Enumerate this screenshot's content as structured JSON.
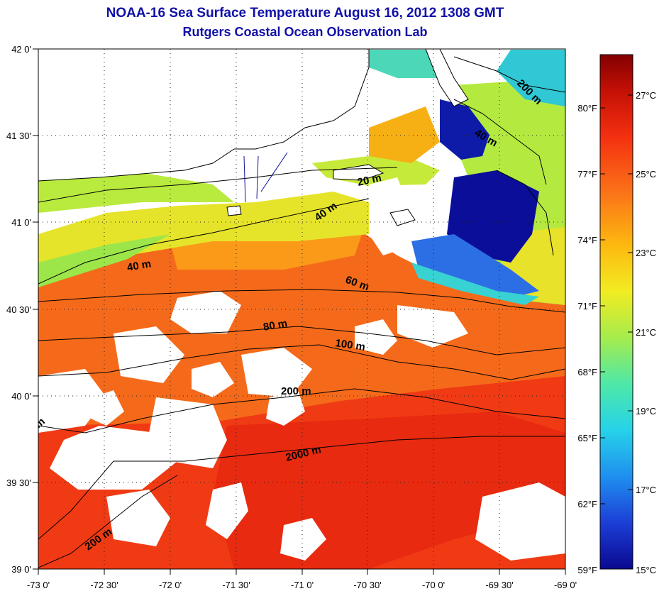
{
  "header": {
    "title": "NOAA-16 Sea Surface Temperature August 16, 2012 1308 GMT",
    "subtitle": "Rutgers Coastal Ocean Observation Lab"
  },
  "map": {
    "lat_ticks": [
      "42 0'",
      "41 30'",
      "41 0'",
      "40 30'",
      "40 0'",
      "39 30'",
      "39 0'"
    ],
    "lon_ticks": [
      "-73 0'",
      "-72 30'",
      "-72 0'",
      "-71 30'",
      "-71 0'",
      "-70 30'",
      "-70 0'",
      "-69 30'",
      "-69 0'"
    ],
    "lat_range": [
      39.0,
      42.0
    ],
    "lon_range": [
      -73.0,
      -69.0
    ],
    "grid": "dotted",
    "depth_labels": [
      "20 m",
      "40 m",
      "40 m",
      "40 m",
      "60 m",
      "80 m",
      "100 m",
      "200 m",
      "200 m",
      "200 m",
      "2000 m",
      "m"
    ]
  },
  "colorbar": {
    "celsius_labels": [
      "27°C",
      "25°C",
      "23°C",
      "21°C",
      "19°C",
      "17°C",
      "15°C"
    ],
    "fahrenheit_labels": [
      "80°F",
      "77°F",
      "74°F",
      "71°F",
      "68°F",
      "65°F",
      "62°F",
      "59°F"
    ],
    "scale": [
      "#0b0890",
      "#1c3fd6",
      "#1f8ff0",
      "#26d2e8",
      "#4ee8a8",
      "#a6ec4c",
      "#f2ec22",
      "#fdb810",
      "#fb7418",
      "#f43010",
      "#c41006",
      "#820000"
    ],
    "range_c": [
      15,
      28
    ]
  }
}
